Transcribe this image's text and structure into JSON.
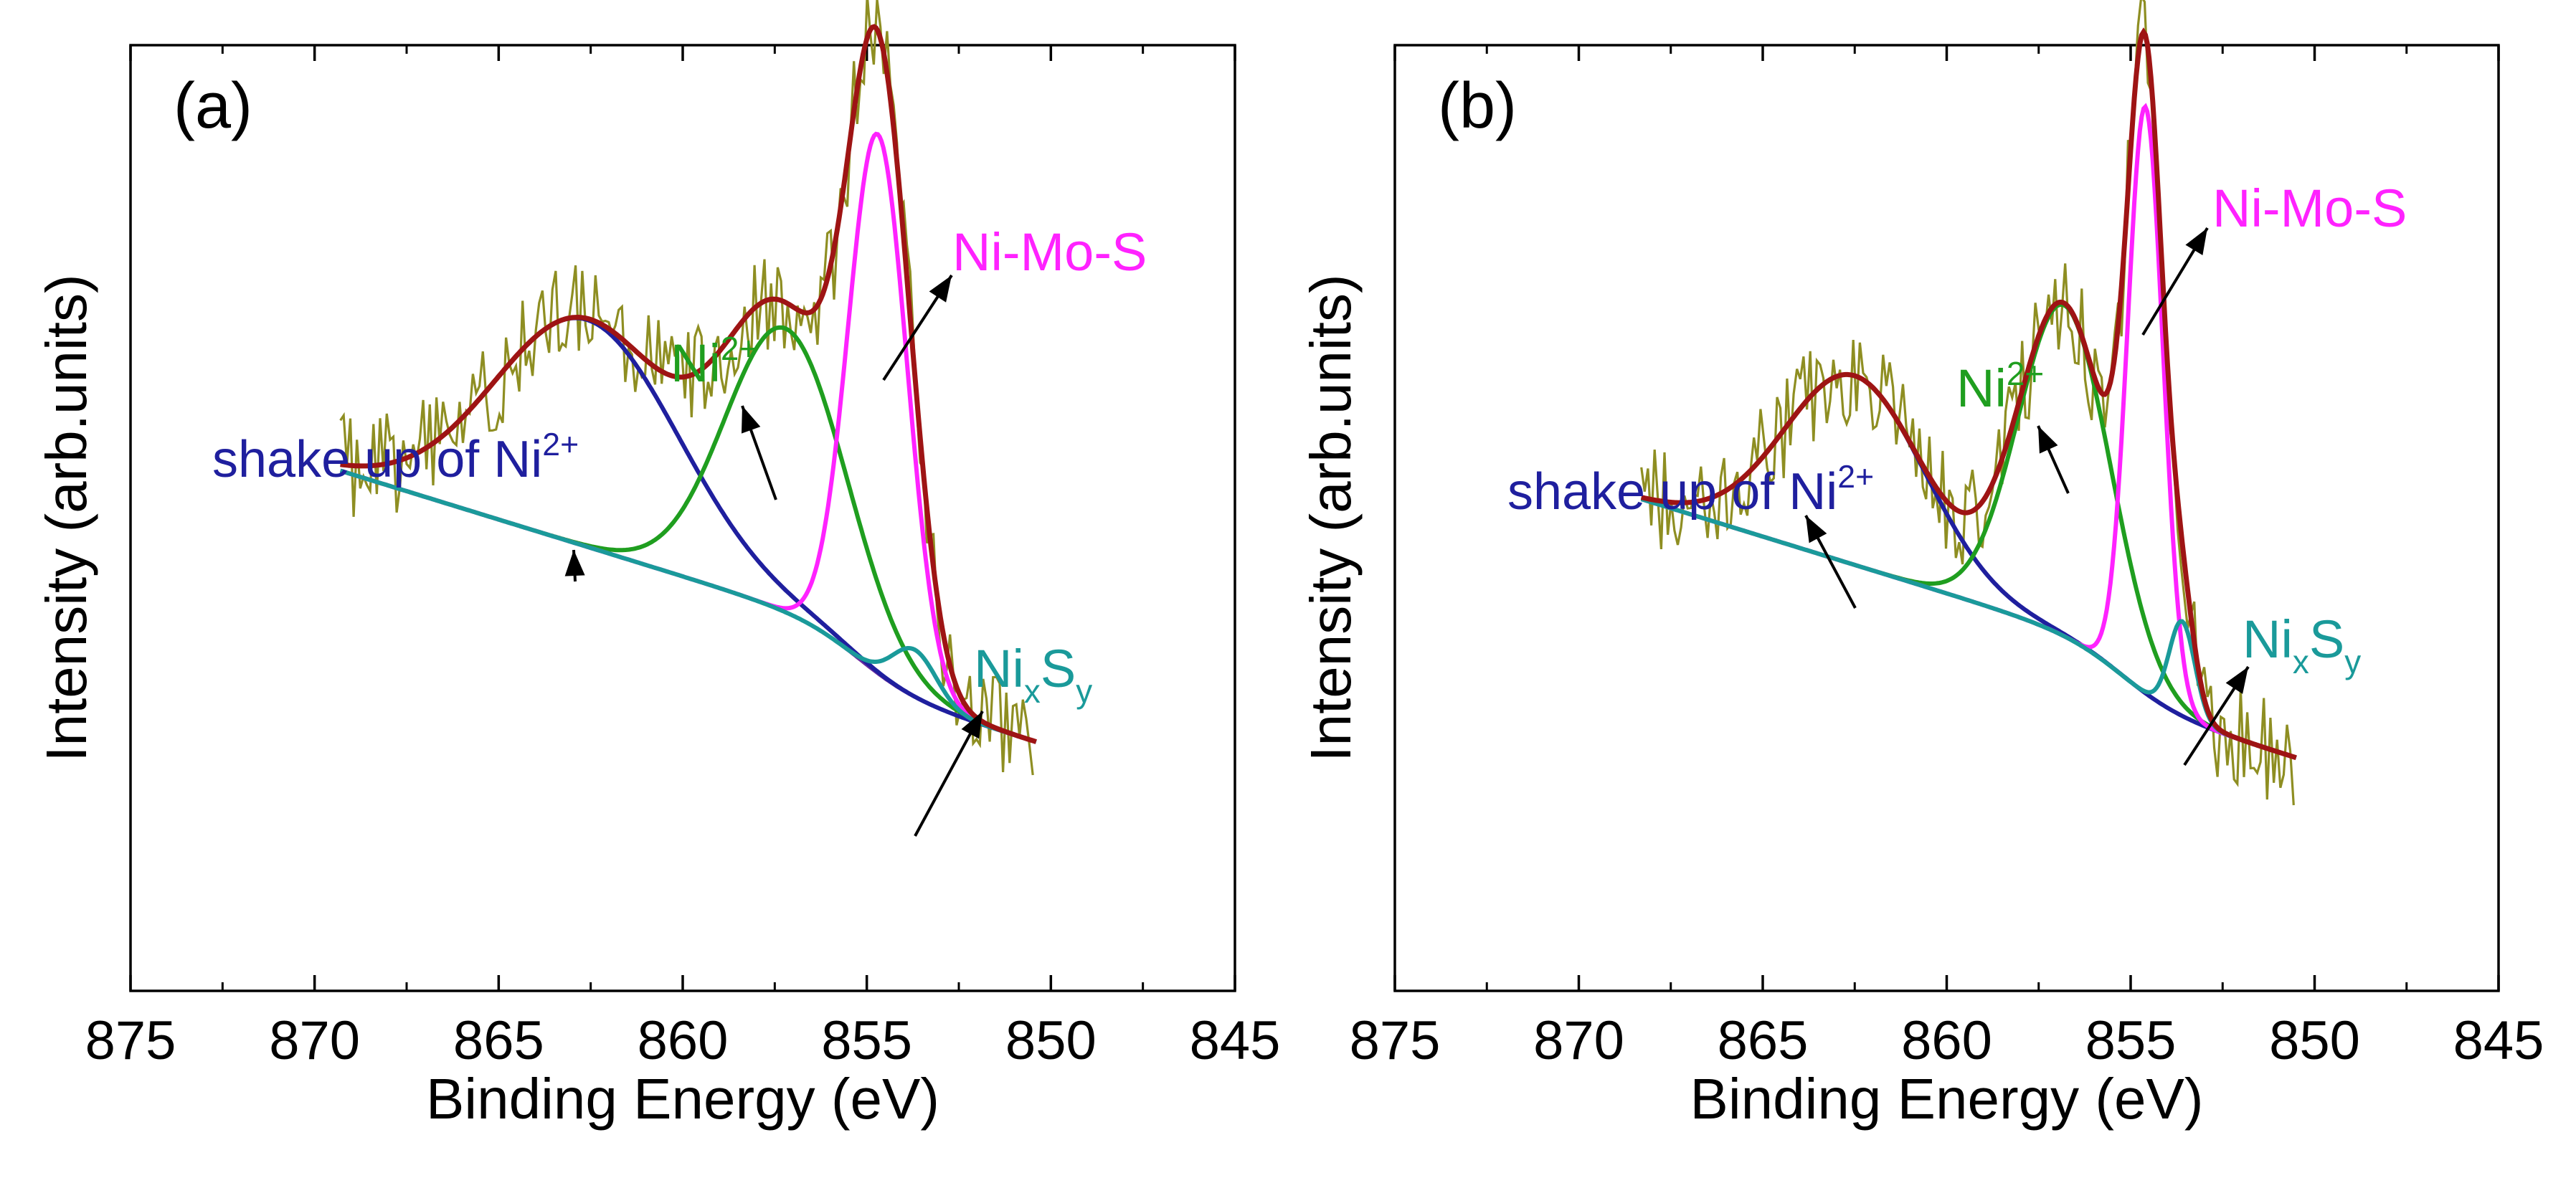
{
  "chart_data": [
    {
      "type": "line",
      "panel_label": "(a)",
      "xlabel": "Binding Energy (eV)",
      "ylabel": "Intensity (arb.units)",
      "xlim": [
        875,
        845
      ],
      "x_ticks": [
        875,
        870,
        865,
        860,
        855,
        850,
        845
      ],
      "x_tick_labels": [
        "875",
        "870",
        "865",
        "860",
        "855",
        "850",
        "845"
      ],
      "ylim": [
        0,
        1
      ],
      "background": 0.55,
      "x_start": 869.3,
      "x_end": 850.4,
      "peaks": [
        {
          "name": "shake up of Ni2+",
          "center": 862.6,
          "sigma": 2.5,
          "amp": 0.24,
          "color": "#1f1f9e"
        },
        {
          "name": "Ni2+",
          "center": 857.2,
          "sigma": 1.65,
          "amp": 0.3,
          "color": "#1f9e1f"
        },
        {
          "name": "Ni-Mo-S",
          "center": 854.7,
          "sigma": 0.8,
          "amp": 0.57,
          "color": "#ff22ff"
        },
        {
          "name": "NixSy",
          "center": 853.7,
          "sigma": 0.6,
          "amp": 0.05,
          "color": "#1a9a9a"
        }
      ],
      "annotations": [
        {
          "text": "shake up of Ni",
          "sup": "2+",
          "color": "#1f1f9e",
          "peak": "shake up of Ni2+"
        },
        {
          "text": "Ni",
          "sup": "2+",
          "color": "#1f9e1f",
          "peak": "Ni2+"
        },
        {
          "text": "Ni-Mo-S",
          "color": "#ff22ff",
          "peak": "Ni-Mo-S"
        },
        {
          "text": "Ni",
          "sub1": "x",
          "mid": "S",
          "sub2": "y",
          "color": "#1a9a9a",
          "peak": "NixSy"
        }
      ]
    },
    {
      "type": "line",
      "panel_label": "(b)",
      "xlabel": "Binding Energy (eV)",
      "ylabel": "Intensity (arb.units)",
      "xlim": [
        875,
        845
      ],
      "x_ticks": [
        875,
        870,
        865,
        860,
        855,
        850,
        845
      ],
      "x_tick_labels": [
        "875",
        "870",
        "865",
        "860",
        "855",
        "850",
        "845"
      ],
      "ylim": [
        0,
        1
      ],
      "background": 0.52,
      "x_start": 868.3,
      "x_end": 850.5,
      "peaks": [
        {
          "name": "shake up of Ni2+",
          "center": 862.5,
          "sigma": 1.9,
          "amp": 0.2,
          "color": "#1f1f9e"
        },
        {
          "name": "Ni2+",
          "center": 856.8,
          "sigma": 1.25,
          "amp": 0.35,
          "color": "#1f9e1f"
        },
        {
          "name": "Ni-Mo-S",
          "center": 854.6,
          "sigma": 0.48,
          "amp": 0.62,
          "color": "#ff22ff"
        },
        {
          "name": "NixSy",
          "center": 853.6,
          "sigma": 0.35,
          "amp": 0.1,
          "color": "#1a9a9a"
        }
      ],
      "annotations": [
        {
          "text": "shake up of Ni",
          "sup": "2+",
          "color": "#1f1f9e",
          "peak": "shake up of Ni2+"
        },
        {
          "text": "Ni",
          "sup": "2+",
          "color": "#1f9e1f",
          "peak": "Ni2+"
        },
        {
          "text": "Ni-Mo-S",
          "color": "#ff22ff",
          "peak": "Ni-Mo-S"
        },
        {
          "text": "Ni",
          "sub1": "x",
          "mid": "S",
          "sub2": "y",
          "color": "#1a9a9a",
          "peak": "NixSy"
        }
      ]
    }
  ],
  "colors": {
    "raw": "#8e8e22",
    "envelope": "#9e1414",
    "baseline": "#6a2aa0",
    "axis": "#000000"
  }
}
